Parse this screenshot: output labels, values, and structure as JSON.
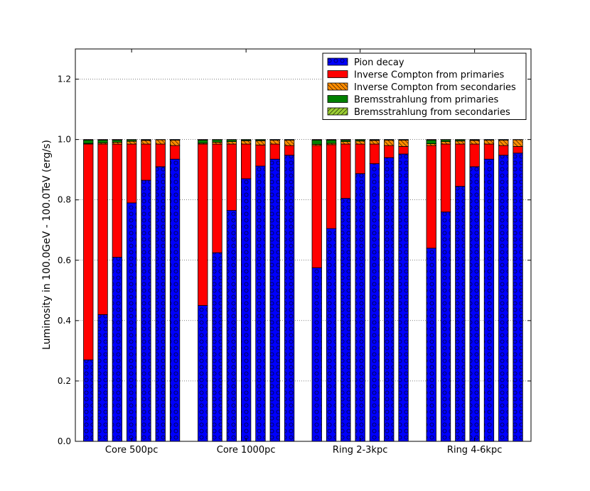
{
  "chart_data": {
    "type": "bar",
    "stacked": true,
    "ylabel": "Luminosity in 100.0GeV - 100.0TeV (erg/s)",
    "ylim": [
      0,
      1.3
    ],
    "yticks": [
      "0.0",
      "0.2",
      "0.4",
      "0.6",
      "0.8",
      "1.0",
      "1.2"
    ],
    "grid": true,
    "legend_position": "top-right",
    "groups": [
      "Core 500pc",
      "Core 1000pc",
      "Ring 2-3kpc",
      "Ring 4-6kpc"
    ],
    "bars_per_group": 7,
    "series": [
      {
        "name": "Pion decay",
        "color": "#0000ff",
        "hatch": "circles",
        "values": [
          [
            0.27,
            0.42,
            0.61,
            0.79,
            0.865,
            0.91,
            0.935
          ],
          [
            0.45,
            0.625,
            0.765,
            0.87,
            0.912,
            0.935,
            0.948
          ],
          [
            0.575,
            0.705,
            0.805,
            0.887,
            0.92,
            0.94,
            0.952
          ],
          [
            0.64,
            0.76,
            0.845,
            0.91,
            0.935,
            0.948,
            0.955
          ]
        ]
      },
      {
        "name": "Inverse Compton from primaries",
        "color": "#ff0000",
        "hatch": "none",
        "values": [
          [
            0.715,
            0.565,
            0.375,
            0.195,
            0.12,
            0.075,
            0.045
          ],
          [
            0.535,
            0.36,
            0.22,
            0.115,
            0.07,
            0.05,
            0.032
          ],
          [
            0.405,
            0.278,
            0.18,
            0.098,
            0.065,
            0.04,
            0.025
          ],
          [
            0.34,
            0.225,
            0.14,
            0.075,
            0.05,
            0.032,
            0.022
          ]
        ]
      },
      {
        "name": "Inverse Compton from secondaries",
        "color": "#ff8c00",
        "hatch": "backslash",
        "values": [
          [
            0.002,
            0.004,
            0.006,
            0.009,
            0.012,
            0.014,
            0.018
          ],
          [
            0.003,
            0.006,
            0.008,
            0.011,
            0.014,
            0.013,
            0.018
          ],
          [
            0.004,
            0.004,
            0.008,
            0.01,
            0.012,
            0.018,
            0.021
          ],
          [
            0.006,
            0.008,
            0.01,
            0.012,
            0.013,
            0.018,
            0.022
          ]
        ]
      },
      {
        "name": "Bremsstrahlung from primaries",
        "color": "#008000",
        "hatch": "none",
        "values": [
          [
            0.011,
            0.009,
            0.007,
            0.005,
            0.002,
            0.001,
            0.001
          ],
          [
            0.01,
            0.008,
            0.006,
            0.003,
            0.003,
            0.001,
            0.001
          ],
          [
            0.014,
            0.011,
            0.005,
            0.004,
            0.002,
            0.001,
            0.001
          ],
          [
            0.012,
            0.006,
            0.004,
            0.002,
            0.001,
            0.001,
            0.001
          ]
        ]
      },
      {
        "name": "Bremsstrahlung from secondaries",
        "color": "#9acd32",
        "hatch": "slash",
        "values": [
          [
            0.002,
            0.002,
            0.002,
            0.001,
            0.001,
            0.0,
            0.001
          ],
          [
            0.002,
            0.001,
            0.001,
            0.001,
            0.001,
            0.001,
            0.001
          ],
          [
            0.002,
            0.002,
            0.002,
            0.001,
            0.001,
            0.001,
            0.001
          ],
          [
            0.002,
            0.001,
            0.001,
            0.001,
            0.001,
            0.001,
            0.0
          ]
        ]
      }
    ]
  }
}
